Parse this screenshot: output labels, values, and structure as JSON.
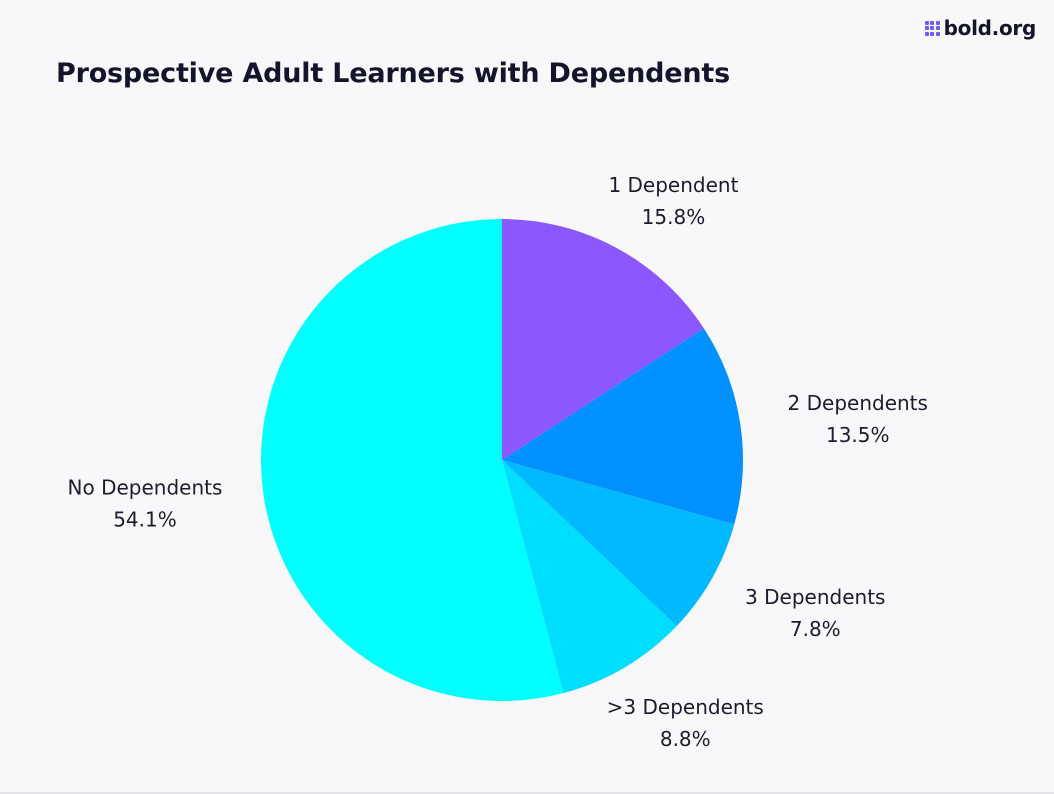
{
  "brand": {
    "logo_text": "bold.org",
    "logo_icon": "grid-dots-icon"
  },
  "chart_data": {
    "type": "pie",
    "title": "Prospective Adult Learners with Dependents",
    "start_angle_deg": 0,
    "direction": "clockwise",
    "slices": [
      {
        "label": "1 Dependent",
        "value": 15.8,
        "value_label": "15.8%",
        "color": "#8b57ff"
      },
      {
        "label": "2 Dependents",
        "value": 13.5,
        "value_label": "13.5%",
        "color": "#0091ff"
      },
      {
        "label": "3 Dependents",
        "value": 7.8,
        "value_label": "7.8%",
        "color": "#00b9ff"
      },
      {
        "label": ">3 Dependents",
        "value": 8.8,
        "value_label": "8.8%",
        "color": "#00deff"
      },
      {
        "label": "No Dependents",
        "value": 54.1,
        "value_label": "54.1%",
        "color": "#00ffff"
      }
    ]
  }
}
